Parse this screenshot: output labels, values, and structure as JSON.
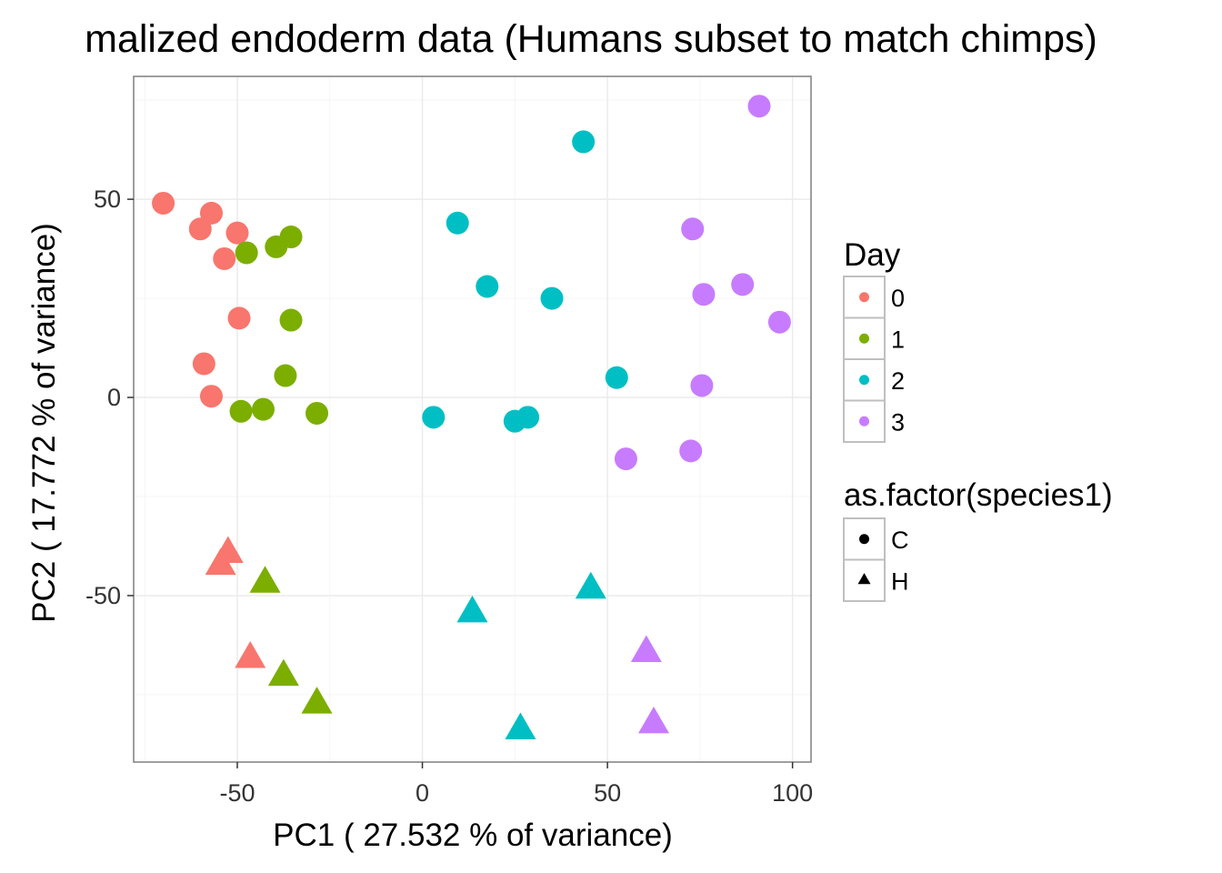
{
  "chart_data": {
    "type": "scatter",
    "title": "malized endoderm data (Humans subset to match chimps)",
    "xlabel": "PC1 ( 27.532 % of variance)",
    "ylabel": "PC2 ( 17.772 % of variance)",
    "xlim": [
      -78,
      105
    ],
    "ylim": [
      -92,
      81
    ],
    "x_ticks": [
      -50,
      0,
      50,
      100
    ],
    "x_tick_labels": [
      "-50",
      "0",
      "50",
      "100"
    ],
    "y_ticks": [
      -50,
      0,
      50
    ],
    "y_tick_labels": [
      "-50",
      "0",
      "50"
    ],
    "grid": true,
    "legend_position": "right",
    "colors": {
      "0": "#F8766D",
      "1": "#7CAE00",
      "2": "#00BFC4",
      "3": "#C77CFF",
      "panel_bg": "#FFFFFF",
      "panel_border": "#7F7F7F",
      "grid_major": "#EBEBEB",
      "grid_minor": "#F5F5F5"
    },
    "legends": [
      {
        "title": "Day",
        "entries": [
          {
            "label": "0",
            "color": "#F8766D",
            "shape": "circle"
          },
          {
            "label": "1",
            "color": "#7CAE00",
            "shape": "circle"
          },
          {
            "label": "2",
            "color": "#00BFC4",
            "shape": "circle"
          },
          {
            "label": "3",
            "color": "#C77CFF",
            "shape": "circle"
          }
        ]
      },
      {
        "title": "as.factor(species1)",
        "entries": [
          {
            "label": "C",
            "color": "#000000",
            "shape": "circle"
          },
          {
            "label": "H",
            "color": "#000000",
            "shape": "triangle"
          }
        ]
      }
    ],
    "points": [
      {
        "x": -70,
        "y": 49,
        "day": "0",
        "species": "C"
      },
      {
        "x": -60,
        "y": 42.5,
        "day": "0",
        "species": "C"
      },
      {
        "x": -57,
        "y": 46.5,
        "day": "0",
        "species": "C"
      },
      {
        "x": -50,
        "y": 41.5,
        "day": "0",
        "species": "C"
      },
      {
        "x": -53.5,
        "y": 35,
        "day": "0",
        "species": "C"
      },
      {
        "x": -49.5,
        "y": 20,
        "day": "0",
        "species": "C"
      },
      {
        "x": -59,
        "y": 8.5,
        "day": "0",
        "species": "C"
      },
      {
        "x": -57,
        "y": 0.3,
        "day": "0",
        "species": "C"
      },
      {
        "x": -47.5,
        "y": 36.5,
        "day": "1",
        "species": "C"
      },
      {
        "x": -39.5,
        "y": 38,
        "day": "1",
        "species": "C"
      },
      {
        "x": -35.5,
        "y": 40.5,
        "day": "1",
        "species": "C"
      },
      {
        "x": -35.5,
        "y": 19.5,
        "day": "1",
        "species": "C"
      },
      {
        "x": -37,
        "y": 5.5,
        "day": "1",
        "species": "C"
      },
      {
        "x": -49,
        "y": -3.5,
        "day": "1",
        "species": "C"
      },
      {
        "x": -43,
        "y": -3,
        "day": "1",
        "species": "C"
      },
      {
        "x": -28.5,
        "y": -4,
        "day": "1",
        "species": "C"
      },
      {
        "x": 43.5,
        "y": 64.5,
        "day": "2",
        "species": "C"
      },
      {
        "x": 9.5,
        "y": 44,
        "day": "2",
        "species": "C"
      },
      {
        "x": 17.5,
        "y": 28,
        "day": "2",
        "species": "C"
      },
      {
        "x": 35,
        "y": 25,
        "day": "2",
        "species": "C"
      },
      {
        "x": 52.5,
        "y": 5,
        "day": "2",
        "species": "C"
      },
      {
        "x": 3,
        "y": -5,
        "day": "2",
        "species": "C"
      },
      {
        "x": 25,
        "y": -6,
        "day": "2",
        "species": "C"
      },
      {
        "x": 28.5,
        "y": -5,
        "day": "2",
        "species": "C"
      },
      {
        "x": 91,
        "y": 73.5,
        "day": "3",
        "species": "C"
      },
      {
        "x": 73,
        "y": 42.5,
        "day": "3",
        "species": "C"
      },
      {
        "x": 86.5,
        "y": 28.5,
        "day": "3",
        "species": "C"
      },
      {
        "x": 76,
        "y": 26,
        "day": "3",
        "species": "C"
      },
      {
        "x": 96.5,
        "y": 19,
        "day": "3",
        "species": "C"
      },
      {
        "x": 75.5,
        "y": 3,
        "day": "3",
        "species": "C"
      },
      {
        "x": 72.5,
        "y": -13.5,
        "day": "3",
        "species": "C"
      },
      {
        "x": 55,
        "y": -15.5,
        "day": "3",
        "species": "C"
      },
      {
        "x": -52.5,
        "y": -39.5,
        "day": "0",
        "species": "H"
      },
      {
        "x": -54.5,
        "y": -42.5,
        "day": "0",
        "species": "H"
      },
      {
        "x": -46.5,
        "y": -66,
        "day": "0",
        "species": "H"
      },
      {
        "x": -42.5,
        "y": -47,
        "day": "1",
        "species": "H"
      },
      {
        "x": -37.5,
        "y": -70.5,
        "day": "1",
        "species": "H"
      },
      {
        "x": -28.5,
        "y": -77.5,
        "day": "1",
        "species": "H"
      },
      {
        "x": 13.5,
        "y": -54.5,
        "day": "2",
        "species": "H"
      },
      {
        "x": 45.5,
        "y": -48.5,
        "day": "2",
        "species": "H"
      },
      {
        "x": 26.5,
        "y": -84,
        "day": "2",
        "species": "H"
      },
      {
        "x": 60.5,
        "y": -64.5,
        "day": "3",
        "species": "H"
      },
      {
        "x": 62.5,
        "y": -82.5,
        "day": "3",
        "species": "H"
      }
    ]
  }
}
